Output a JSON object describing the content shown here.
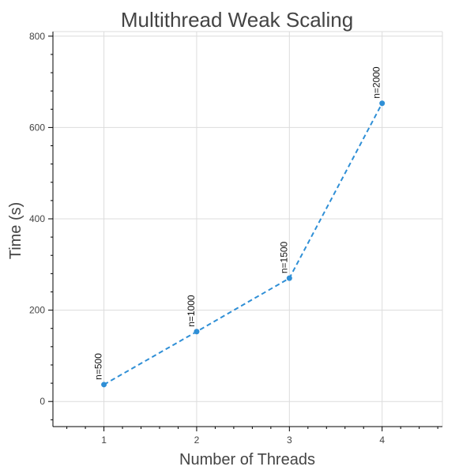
{
  "chart_data": {
    "type": "line",
    "title": "Multithread Weak Scaling",
    "xlabel": "Number of Threads",
    "ylabel": "Time (s)",
    "xlim": [
      0.45,
      4.65
    ],
    "ylim": [
      -55,
      810
    ],
    "xticks": [
      1,
      2,
      3,
      4
    ],
    "yticks": [
      0,
      200,
      400,
      600,
      800
    ],
    "grid": true,
    "line_style": "dashed",
    "color": "#2f8fd6",
    "series": [
      {
        "x": [
          1,
          2,
          3,
          4
        ],
        "y": [
          37,
          153,
          270,
          653
        ],
        "labels": [
          "n=500",
          "n=1000",
          "n=1500",
          "n=2000"
        ]
      }
    ]
  }
}
